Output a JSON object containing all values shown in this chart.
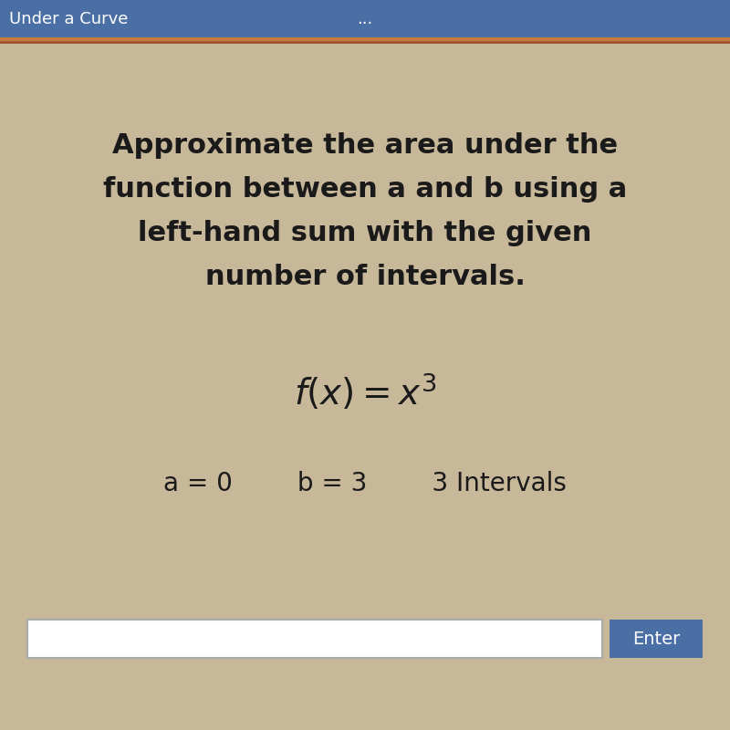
{
  "title_bar_color": "#4a6fa5",
  "title_bar_text": "Under a Curve",
  "title_bar_text_color": "#ffffff",
  "title_bar_dots": "...",
  "background_color": "#c8b89a",
  "main_text_line1": "Approximate the area under the",
  "main_text_line2": "function between a and b using a",
  "main_text_line3": "left-hand sum with the given",
  "main_text_line4": "number of intervals.",
  "formula": "$f(x) = x^3$",
  "params": "a = 0        b = 3        3 Intervals",
  "input_box_color": "#ffffff",
  "input_box_border": "#aaaaaa",
  "enter_button_color": "#4a6fa5",
  "enter_button_text": "Enter",
  "enter_button_text_color": "#ffffff",
  "main_text_color": "#1a1a1a",
  "main_text_fontsize": 22,
  "formula_fontsize": 28,
  "params_fontsize": 20,
  "separator_color": "#c47a3a",
  "separator_color2": "#a0522d"
}
